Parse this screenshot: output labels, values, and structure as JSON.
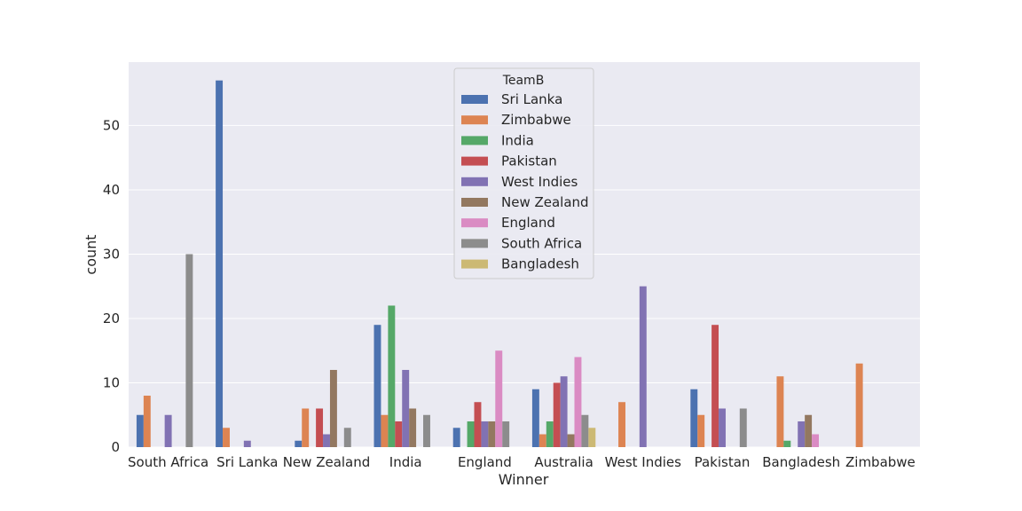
{
  "chart_data": {
    "type": "bar",
    "xlabel": "Winner",
    "ylabel": "count",
    "ylim": [
      0,
      59.85
    ],
    "yticks": [
      0,
      10,
      20,
      30,
      40,
      50
    ],
    "grid": true,
    "legend_title": "TeamB",
    "legend_position": "top-center",
    "categories": [
      "South Africa",
      "Sri Lanka",
      "New Zealand",
      "India",
      "England",
      "Australia",
      "West Indies",
      "Pakistan",
      "Bangladesh",
      "Zimbabwe"
    ],
    "series": [
      {
        "name": "Sri Lanka",
        "color": "#4c72b0",
        "values": [
          5,
          57,
          1,
          19,
          3,
          9,
          0,
          9,
          0,
          0
        ]
      },
      {
        "name": "Zimbabwe",
        "color": "#dd8452",
        "values": [
          8,
          3,
          6,
          5,
          0,
          2,
          7,
          5,
          11,
          13
        ]
      },
      {
        "name": "India",
        "color": "#55a868",
        "values": [
          0,
          0,
          0,
          22,
          4,
          4,
          0,
          0,
          1,
          0
        ]
      },
      {
        "name": "Pakistan",
        "color": "#c44e52",
        "values": [
          0,
          0,
          6,
          4,
          7,
          10,
          0,
          19,
          0,
          0
        ]
      },
      {
        "name": "West Indies",
        "color": "#8172b3",
        "values": [
          5,
          1,
          2,
          12,
          4,
          11,
          25,
          6,
          4,
          0
        ]
      },
      {
        "name": "New Zealand",
        "color": "#937860",
        "values": [
          0,
          0,
          12,
          6,
          4,
          2,
          0,
          0,
          5,
          0
        ]
      },
      {
        "name": "England",
        "color": "#da8bc3",
        "values": [
          0,
          0,
          0,
          0,
          15,
          14,
          0,
          0,
          2,
          0
        ]
      },
      {
        "name": "South Africa",
        "color": "#8c8c8c",
        "values": [
          30,
          0,
          3,
          5,
          4,
          5,
          0,
          6,
          0,
          0
        ]
      },
      {
        "name": "Bangladesh",
        "color": "#ccb974",
        "values": [
          0,
          0,
          0,
          0,
          0,
          3,
          0,
          0,
          0,
          0
        ]
      }
    ]
  },
  "colors": {
    "plot_background": "#eaeaf2",
    "grid": "#ffffff",
    "text": "#262626"
  }
}
